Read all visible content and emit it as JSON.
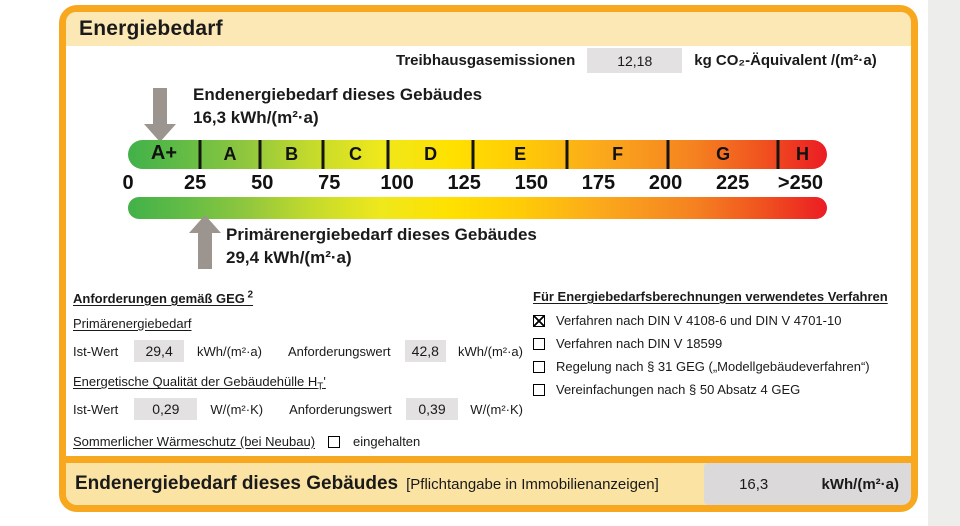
{
  "title": "Energiebedarf",
  "ghg": {
    "label": "Treibhausgasemissionen",
    "value": "12,18",
    "unit": "kg CO₂-Äquivalent /(m²·a)"
  },
  "end_energy_marker": {
    "line1": "Endenergiebedarf dieses Gebäudes",
    "line2": "16,3 kWh/(m²·a)"
  },
  "primary_energy_marker": {
    "line1": "Primärenergiebedarf dieses Gebäudes",
    "line2": "29,4 kWh/(m²·a)"
  },
  "chart_data": {
    "type": "scale-band",
    "title": "Energiebedarf",
    "axis_ticks": [
      "0",
      "25",
      "50",
      "75",
      "100",
      "125",
      "150",
      "175",
      "200",
      "225",
      ">250"
    ],
    "tick_pcts": [
      0,
      9.6,
      19.2,
      28.8,
      38.5,
      48.1,
      57.7,
      67.3,
      76.9,
      86.5,
      96.2
    ],
    "classes": [
      {
        "label": "A+",
        "start_pct": 0,
        "end_pct": 10.3
      },
      {
        "label": "A",
        "start_pct": 10.3,
        "end_pct": 18.9
      },
      {
        "label": "B",
        "start_pct": 18.9,
        "end_pct": 27.9
      },
      {
        "label": "C",
        "start_pct": 27.9,
        "end_pct": 37.2
      },
      {
        "label": "D",
        "start_pct": 37.2,
        "end_pct": 49.4
      },
      {
        "label": "E",
        "start_pct": 49.4,
        "end_pct": 62.8
      },
      {
        "label": "F",
        "start_pct": 62.8,
        "end_pct": 77.3
      },
      {
        "label": "G",
        "start_pct": 77.3,
        "end_pct": 93.0
      },
      {
        "label": "H",
        "start_pct": 93.0,
        "end_pct": 100
      }
    ],
    "markers": [
      {
        "name": "Endenergiebedarf dieses Gebäudes",
        "value": 16.3,
        "unit": "kWh/(m²·a)"
      },
      {
        "name": "Primärenergiebedarf dieses Gebäudes",
        "value": 29.4,
        "unit": "kWh/(m²·a)"
      },
      {
        "name": "Treibhausgasemissionen",
        "value": 12.18,
        "unit": "kg CO₂-Äquivalent /(m²·a)"
      }
    ],
    "axis_range": [
      0,
      250
    ]
  },
  "requirements": {
    "heading": "Anforderungen gemäß GEG",
    "heading_sup": "2",
    "primary": {
      "subheading": "Primärenergiebedarf",
      "ist_label": "Ist-Wert",
      "ist_value": "29,4",
      "ist_unit": "kWh/(m²·a)",
      "req_label": "Anforderungswert",
      "req_value": "42,8",
      "req_unit": "kWh/(m²·a)"
    },
    "envelope": {
      "subheading_pre": "Energetische Qualität der Gebäudehülle H",
      "subheading_sub": "T",
      "subheading_post": "'",
      "ist_label": "Ist-Wert",
      "ist_value": "0,29",
      "ist_unit": "W/(m²·K)",
      "req_label": "Anforderungswert",
      "req_value": "0,39",
      "req_unit": "W/(m²·K)"
    },
    "summer": {
      "label": "Sommerlicher Wärmeschutz (bei Neubau)",
      "checkbox_label": "eingehalten",
      "checked": false
    }
  },
  "methods": {
    "heading": "Für Energiebedarfsberechnungen verwendetes Verfahren",
    "items": [
      {
        "label": "Verfahren nach DIN V 4108-6 und DIN V 4701-10",
        "checked": true
      },
      {
        "label": "Verfahren nach DIN V 18599",
        "checked": false
      },
      {
        "label": "Regelung nach § 31 GEG („Modellgebäudeverfahren“)",
        "checked": false
      },
      {
        "label": "Vereinfachungen nach § 50 Absatz 4 GEG",
        "checked": false
      }
    ]
  },
  "footer": {
    "label": "Endenergiebedarf dieses Gebäudes",
    "note": "[Pflichtangabe in Immobilienanzeigen]",
    "value": "16,3",
    "unit": "kWh/(m²·a)"
  },
  "colors": {
    "frame_orange": "#F7A81F",
    "header_band": "#FCE8B4",
    "footer_band": "#FBE3A4",
    "value_box_gray": "#E3E1E1",
    "footer_box_gray": "#DBD9D9",
    "arrow_gray": "#9C948F",
    "scale_green": "#41B149",
    "scale_yellow": "#FFE100",
    "scale_orange": "#FBA81C",
    "scale_red": "#EB1C24"
  }
}
